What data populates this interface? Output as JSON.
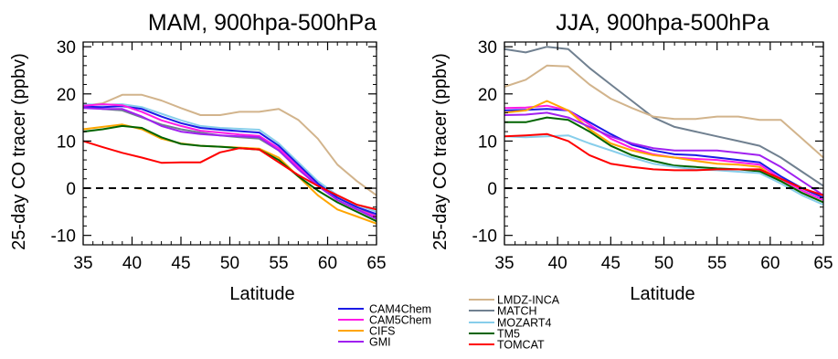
{
  "legend": {
    "entries": [
      {
        "name": "CAM4Chem",
        "color": "#1a1ae6"
      },
      {
        "name": "CAM5Chem",
        "color": "#ff1ae6"
      },
      {
        "name": "CIFS",
        "color": "#ffa500"
      },
      {
        "name": "GMI",
        "color": "#a020f0"
      },
      {
        "name": "LMDZ-INCA",
        "color": "#d2b48c"
      },
      {
        "name": "MATCH",
        "color": "#708090"
      },
      {
        "name": "MOZART4",
        "color": "#87ceeb"
      },
      {
        "name": "TM5",
        "color": "#006400"
      },
      {
        "name": "TOMCAT",
        "color": "#ff0000"
      }
    ]
  },
  "chart_data": [
    {
      "type": "line",
      "title": "MAM, 900hpa-500hPa",
      "xlabel": "Latitude",
      "ylabel": "25-day CO tracer (ppbv)",
      "xlim": [
        35,
        65
      ],
      "ylim": [
        -12,
        31
      ],
      "xticks": [
        35,
        40,
        45,
        50,
        55,
        60,
        65
      ],
      "yticks": [
        -10,
        0,
        10,
        20,
        30
      ],
      "reference_line": {
        "y": 0,
        "style": "dashed"
      },
      "x": [
        35,
        37,
        39,
        41,
        43,
        45,
        47,
        49,
        51,
        53,
        55,
        57,
        59,
        61,
        63,
        65
      ],
      "series": [
        {
          "name": "LMDZ-INCA",
          "values": [
            17.5,
            18,
            19.8,
            19.8,
            18.6,
            17,
            15.5,
            15.5,
            16.2,
            16.2,
            16.8,
            14.5,
            10.5,
            5,
            1.5,
            -1.5
          ]
        },
        {
          "name": "MATCH",
          "values": [
            17.5,
            16.8,
            16.5,
            15,
            13.5,
            12.5,
            11.8,
            11.2,
            10.8,
            10.5,
            8,
            4.5,
            1,
            -2,
            -4,
            -6
          ]
        },
        {
          "name": "MOZART4",
          "values": [
            17.8,
            17.7,
            17.8,
            17.2,
            15.8,
            14.4,
            13.2,
            12.8,
            12.6,
            12.4,
            9.5,
            5.5,
            1.5,
            -1.5,
            -3.5,
            -5
          ]
        },
        {
          "name": "CAM4Chem",
          "values": [
            17.3,
            17.2,
            17.4,
            16.8,
            15.2,
            13.8,
            12.8,
            12.4,
            12.1,
            11.8,
            9,
            5,
            1,
            -2,
            -4,
            -5.5
          ]
        },
        {
          "name": "CAM5Chem",
          "values": [
            17.5,
            17.8,
            17.6,
            16.2,
            14.4,
            13.2,
            12.2,
            11.8,
            11.4,
            11.1,
            8.5,
            4.5,
            0.5,
            -2.5,
            -4.5,
            -6
          ]
        },
        {
          "name": "GMI",
          "values": [
            17,
            16.8,
            16.8,
            15.2,
            13.2,
            12,
            11.5,
            11.2,
            11,
            10.8,
            8,
            4,
            0.5,
            -2.5,
            -4.5,
            -6.5
          ]
        },
        {
          "name": "CIFS",
          "values": [
            12.5,
            13,
            13.5,
            12.5,
            10.5,
            9.5,
            9,
            8.8,
            8.6,
            8.4,
            6.5,
            2.5,
            -1.5,
            -4.5,
            -6,
            -7.5
          ]
        },
        {
          "name": "TM5",
          "values": [
            12,
            12.5,
            13.2,
            12.8,
            10.8,
            9.4,
            9,
            8.8,
            8.5,
            8.2,
            6,
            2.5,
            -0.5,
            -3,
            -5,
            -7
          ]
        },
        {
          "name": "TOMCAT",
          "values": [
            10,
            8.7,
            7.5,
            6.5,
            5.4,
            5.5,
            5.5,
            7.6,
            8.5,
            8.2,
            5.5,
            2.8,
            0.5,
            -1.5,
            -3.5,
            -4.5
          ]
        }
      ]
    },
    {
      "type": "line",
      "title": "JJA, 900hpa-500hPa",
      "xlabel": "Latitude",
      "ylabel": "25-day CO tracer (ppbv)",
      "xlim": [
        35,
        65
      ],
      "ylim": [
        -12,
        31
      ],
      "xticks": [
        35,
        40,
        45,
        50,
        55,
        60,
        65
      ],
      "yticks": [
        -10,
        0,
        10,
        20,
        30
      ],
      "reference_line": {
        "y": 0,
        "style": "dashed"
      },
      "x": [
        35,
        37,
        39,
        41,
        43,
        45,
        47,
        49,
        51,
        53,
        55,
        57,
        59,
        61,
        63,
        65
      ],
      "series": [
        {
          "name": "MATCH",
          "values": [
            29.5,
            28.8,
            30,
            29.5,
            25.5,
            22,
            18.5,
            15,
            13,
            12,
            11,
            10,
            9,
            6.5,
            3.5,
            0.5
          ]
        },
        {
          "name": "LMDZ-INCA",
          "values": [
            21.5,
            23,
            26,
            25.8,
            22,
            19,
            17,
            15.2,
            14.7,
            14.7,
            15.2,
            15.2,
            14.5,
            14.5,
            10.5,
            6.5
          ]
        },
        {
          "name": "CAM4Chem",
          "values": [
            16.5,
            16.6,
            16.8,
            16.5,
            14,
            11.5,
            9.2,
            8,
            7.2,
            7,
            6.5,
            6,
            5.5,
            2.5,
            0,
            -2
          ]
        },
        {
          "name": "CAM5Chem",
          "values": [
            17,
            17.1,
            17.5,
            16.5,
            13.5,
            10.5,
            8.5,
            7.2,
            6.5,
            6.2,
            6,
            5.5,
            5,
            2,
            -0.5,
            -2.5
          ]
        },
        {
          "name": "CIFS",
          "values": [
            16,
            16.5,
            18.5,
            16.5,
            12.5,
            9.5,
            8,
            7,
            6.5,
            5.8,
            5.2,
            5,
            4.5,
            1.5,
            -1,
            -3
          ]
        },
        {
          "name": "GMI",
          "values": [
            15.5,
            15.6,
            16,
            15,
            13,
            11,
            9.5,
            8.5,
            8,
            8,
            8,
            7.5,
            7,
            4.5,
            1.5,
            -1.5
          ]
        },
        {
          "name": "TM5",
          "values": [
            14,
            14,
            15,
            14.5,
            12,
            9,
            7,
            5.8,
            4.8,
            4.5,
            4.2,
            4,
            3.6,
            1.5,
            -1,
            -3
          ]
        },
        {
          "name": "MOZART4",
          "values": [
            11,
            10.8,
            11,
            11.2,
            9.5,
            8,
            6.5,
            5.2,
            4.5,
            4,
            3.8,
            3.5,
            3.2,
            1,
            -1.5,
            -3.5
          ]
        },
        {
          "name": "TOMCAT",
          "values": [
            11,
            11.2,
            11.5,
            10,
            7,
            5.2,
            4.5,
            4,
            3.8,
            3.8,
            4,
            4,
            4,
            2,
            0,
            -1.5
          ]
        }
      ]
    }
  ]
}
